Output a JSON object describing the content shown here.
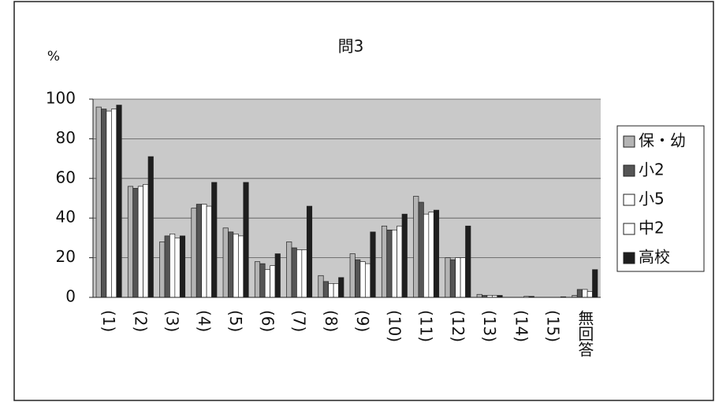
{
  "chart_data": {
    "type": "bar",
    "title": "問3",
    "y_label": "%",
    "categories": [
      "(1)",
      "(2)",
      "(3)",
      "(4)",
      "(5)",
      "(6)",
      "(7)",
      "(8)",
      "(9)",
      "(10)",
      "(11)",
      "(12)",
      "(13)",
      "(14)",
      "(15)",
      "無回答"
    ],
    "series": [
      {
        "name": "保・幼",
        "color": "#b4b4b4",
        "values": [
          96,
          56,
          28,
          45,
          35,
          18,
          28,
          11,
          22,
          36,
          51,
          20,
          1.5,
          0,
          0,
          1
        ]
      },
      {
        "name": "小2",
        "color": "#555555",
        "values": [
          95,
          55,
          31,
          47,
          33,
          17,
          25,
          8,
          19,
          34,
          48,
          19,
          1,
          0,
          0,
          4
        ]
      },
      {
        "name": "小5",
        "color": "#ffffff",
        "values": [
          94,
          56,
          32,
          47,
          32,
          14,
          24,
          7,
          18,
          34,
          42,
          20,
          1,
          0,
          0,
          4
        ]
      },
      {
        "name": "中2",
        "color": "#ffffff",
        "values": [
          95,
          57,
          30,
          46,
          31,
          16,
          24,
          7,
          17,
          36,
          43,
          20,
          1,
          0.5,
          0,
          3
        ]
      },
      {
        "name": "高校",
        "color": "#1e1e1e",
        "values": [
          97,
          71,
          31,
          58,
          58,
          22,
          46,
          10,
          33,
          42,
          44,
          36,
          1,
          0.5,
          0.3,
          14
        ]
      }
    ],
    "ylim": [
      0,
      100
    ],
    "yticks": [
      0,
      20,
      40,
      60,
      80,
      100
    ],
    "grid": true,
    "legend": "right"
  }
}
